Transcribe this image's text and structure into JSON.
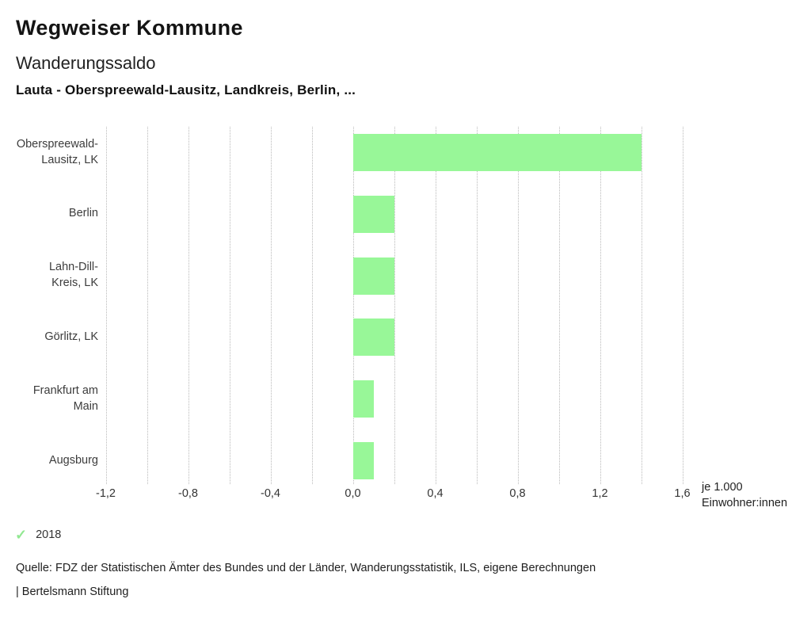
{
  "header": {
    "title": "Wegweiser Kommune",
    "subtitle": "Wanderungssaldo",
    "selection": "Lauta - Oberspreewald-Lausitz, Landkreis, Berlin, ..."
  },
  "chart_data": {
    "type": "bar",
    "orientation": "horizontal",
    "categories": [
      "Oberspreewald-Lausitz, LK",
      "Berlin",
      "Lahn-Dill-Kreis, LK",
      "Görlitz, LK",
      "Frankfurt am Main",
      "Augsburg"
    ],
    "category_display_lines": [
      [
        "Oberspreewald-",
        "Lausitz, LK"
      ],
      [
        "Berlin"
      ],
      [
        "Lahn-Dill-",
        "Kreis, LK"
      ],
      [
        "Görlitz, LK"
      ],
      [
        "Frankfurt am",
        "Main"
      ],
      [
        "Augsburg"
      ]
    ],
    "series": [
      {
        "name": "2018",
        "values": [
          1.4,
          0.2,
          0.2,
          0.2,
          0.1,
          0.1
        ]
      }
    ],
    "xlim": [
      -1.2,
      1.6
    ],
    "tick_step": 0.2,
    "label_step": 0.4,
    "tick_labels": [
      "-1,2",
      "-0,8",
      "-0,4",
      "0,0",
      "0,4",
      "0,8",
      "1,2",
      "1,6"
    ],
    "unit_label": "je 1.000 Einwohner:innen",
    "grid": true,
    "bar_color": "#98f798",
    "legend_position": "bottom-left"
  },
  "legend": {
    "check_icon": "✓",
    "check_color": "#92e892",
    "label": "2018"
  },
  "footer": {
    "source": "Quelle: FDZ der Statistischen Ämter des Bundes und der Länder, Wanderungsstatistik, ILS, eigene Berechnungen",
    "brand": "| Bertelsmann Stiftung"
  }
}
